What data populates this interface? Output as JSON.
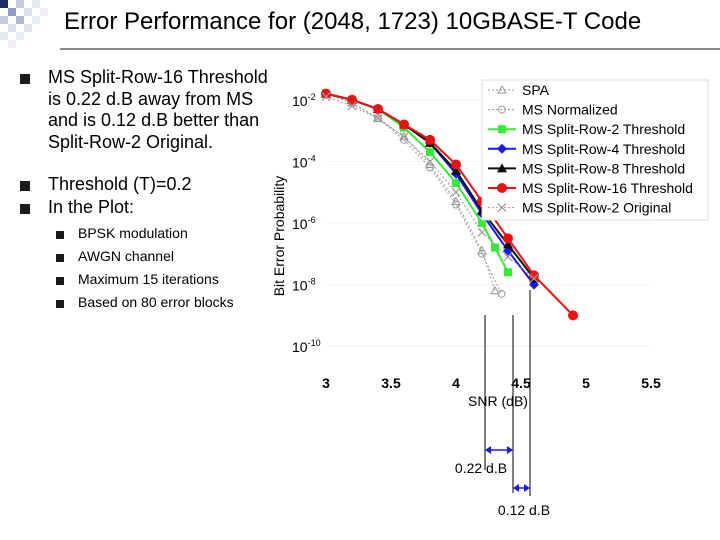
{
  "slide": {
    "title": "Error Performance for (2048, 1723) 10GBASE-T Code",
    "bullets": [
      {
        "lines": [
          "MS Split-Row-16 Threshold",
          "is 0.22 d.B away from MS",
          "and is 0.12 d.B better than",
          "Split-Row-2 Original."
        ]
      },
      {
        "lines": [
          "Threshold (T)=0.2"
        ]
      },
      {
        "lines": [
          "In the Plot:"
        ]
      }
    ],
    "sub_bullets": [
      "BPSK modulation",
      "AWGN channel",
      "Maximum 15 iterations",
      "Based on 80 error blocks"
    ]
  },
  "annotations": {
    "gap1": "0.22 d.B",
    "gap2": "0.12 d.B"
  },
  "colors": {
    "green": "#33ee33",
    "blue": "#1a1aee",
    "black": "#111111",
    "red": "#ee1111",
    "gray": "#9a9a9a",
    "bullet": "#1b1b1b"
  },
  "chart_data": {
    "type": "line",
    "xlabel": "SNR (dB)",
    "ylabel": "Bit Error Probability",
    "xlim": [
      3,
      5.5
    ],
    "ylim_exponent": [
      -10,
      -1
    ],
    "xticks": [
      "3",
      "3.5",
      "4",
      "4.5",
      "5",
      "5.5"
    ],
    "yticks": [
      {
        "base": "10",
        "exp": "-2",
        "value": -2
      },
      {
        "base": "10",
        "exp": "-4",
        "value": -4
      },
      {
        "base": "10",
        "exp": "-6",
        "value": -6
      },
      {
        "base": "10",
        "exp": "-8",
        "value": -8
      },
      {
        "base": "10",
        "exp": "-10",
        "value": -10
      }
    ],
    "series": [
      {
        "name": "SPA",
        "style": "dotted",
        "marker": "triangle-open",
        "color": "#9a9a9a",
        "x": [
          3.0,
          3.2,
          3.4,
          3.6,
          3.8,
          4.0,
          4.2,
          4.3
        ],
        "y": [
          -1.8,
          -2.1,
          -2.6,
          -3.2,
          -4.1,
          -5.3,
          -6.9,
          -8.2
        ]
      },
      {
        "name": "MS Normalized",
        "style": "dotted",
        "marker": "circle-open",
        "color": "#9a9a9a",
        "x": [
          3.0,
          3.2,
          3.4,
          3.6,
          3.8,
          4.0,
          4.2,
          4.35
        ],
        "y": [
          -1.8,
          -2.1,
          -2.6,
          -3.3,
          -4.2,
          -5.4,
          -7.0,
          -8.3
        ]
      },
      {
        "name": "MS Split-Row-2 Threshold",
        "style": "solid",
        "marker": "square",
        "color": "#33ee33",
        "x": [
          3.0,
          3.2,
          3.4,
          3.6,
          3.8,
          4.0,
          4.2,
          4.3,
          4.4
        ],
        "y": [
          -1.8,
          -2.0,
          -2.3,
          -2.9,
          -3.7,
          -4.7,
          -6.0,
          -6.8,
          -7.6
        ]
      },
      {
        "name": "MS Split-Row-4 Threshold",
        "style": "solid",
        "marker": "diamond",
        "color": "#1a1aee",
        "x": [
          3.0,
          3.2,
          3.4,
          3.6,
          3.8,
          4.0,
          4.2,
          4.4,
          4.6
        ],
        "y": [
          -1.8,
          -2.0,
          -2.3,
          -2.8,
          -3.4,
          -4.4,
          -5.7,
          -6.9,
          -8.0
        ]
      },
      {
        "name": "MS Split-Row-8 Threshold",
        "style": "solid",
        "marker": "triangle",
        "color": "#111111",
        "x": [
          3.0,
          3.2,
          3.4,
          3.6,
          3.8,
          4.0,
          4.2,
          4.4,
          4.6
        ],
        "y": [
          -1.8,
          -2.0,
          -2.3,
          -2.8,
          -3.4,
          -4.3,
          -5.6,
          -6.7,
          -7.8
        ]
      },
      {
        "name": "MS Split-Row-16 Threshold",
        "style": "solid",
        "marker": "circle",
        "color": "#ee1111",
        "x": [
          3.0,
          3.2,
          3.4,
          3.6,
          3.8,
          4.0,
          4.2,
          4.4,
          4.6,
          4.9
        ],
        "y": [
          -1.8,
          -2.0,
          -2.3,
          -2.8,
          -3.3,
          -4.1,
          -5.3,
          -6.5,
          -7.7,
          -9.0
        ]
      },
      {
        "name": "MS Split-Row-2 Original",
        "style": "dotted",
        "marker": "x",
        "color": "#9a9a9a",
        "x": [
          3.0,
          3.2,
          3.4,
          3.6,
          3.8,
          4.0,
          4.2,
          4.4,
          4.6
        ],
        "y": [
          -1.9,
          -2.2,
          -2.6,
          -3.2,
          -4.0,
          -5.0,
          -6.3,
          -7.1,
          -7.8
        ]
      }
    ]
  }
}
